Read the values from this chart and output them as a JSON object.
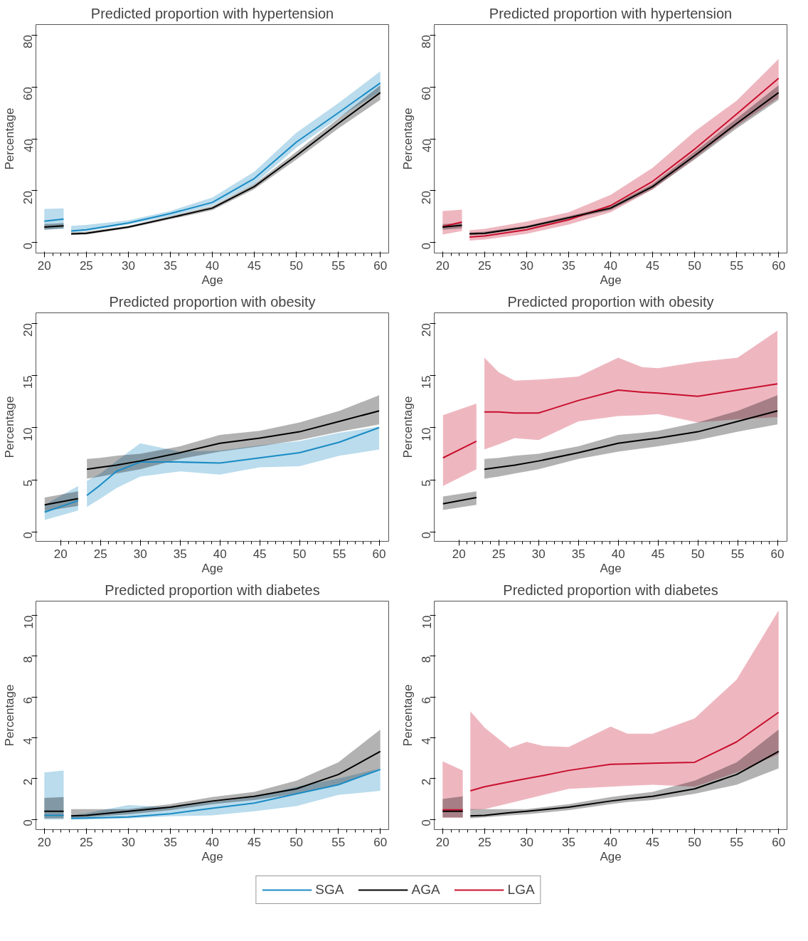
{
  "chart_data": [
    {
      "type": "line",
      "title": "Predicted proportion with hypertension",
      "xlabel": "Age",
      "ylabel": "Percentage",
      "grid": false,
      "xlim": [
        19,
        61
      ],
      "xticks": [
        20,
        25,
        30,
        35,
        40,
        45,
        50,
        55,
        60
      ],
      "ylim": [
        -4,
        84
      ],
      "yticks": [
        0,
        20,
        40,
        60,
        80
      ],
      "x": [
        20,
        22.3,
        22.8,
        23.2,
        25,
        30,
        35,
        40,
        45,
        50,
        55,
        60
      ],
      "series": [
        {
          "color": "#1a8bc4",
          "values": [
            8.3,
            9.1,
            null,
            4.5,
            5.0,
            7.6,
            11.2,
            15.5,
            24.7,
            38.7,
            50,
            61.5
          ],
          "lower": [
            5,
            5.3,
            null,
            3.9,
            4.4,
            7,
            10.2,
            14.3,
            22.6,
            36.6,
            48,
            58.3
          ],
          "upper": [
            13,
            13.2,
            null,
            6.5,
            6.8,
            8.6,
            12.2,
            17.4,
            27.3,
            42.3,
            53.7,
            66
          ]
        },
        {
          "color": "#000000",
          "values": [
            6.0,
            6.5,
            null,
            3.4,
            3.6,
            6.0,
            9.6,
            13.3,
            21.6,
            33.5,
            45.9,
            57.8
          ],
          "lower": [
            5.0,
            5.5,
            null,
            2.9,
            3.1,
            5.5,
            9,
            12.5,
            20.6,
            32,
            44,
            55
          ],
          "upper": [
            7.2,
            7.5,
            null,
            3.9,
            4.2,
            6.5,
            10.2,
            14.1,
            22.6,
            35,
            47.8,
            60.6
          ]
        }
      ]
    },
    {
      "type": "line",
      "title": "Predicted proportion with hypertension",
      "xlabel": "Age",
      "ylabel": "Percentage",
      "grid": false,
      "xlim": [
        19,
        61
      ],
      "xticks": [
        20,
        25,
        30,
        35,
        40,
        45,
        50,
        55,
        60
      ],
      "ylim": [
        -4,
        84
      ],
      "yticks": [
        0,
        20,
        40,
        60,
        80
      ],
      "x": [
        20,
        22.3,
        22.8,
        23.2,
        25,
        30,
        35,
        40,
        45,
        50,
        55,
        60
      ],
      "series": [
        {
          "color": "#c8102e",
          "values": [
            6.2,
            7.9,
            null,
            2.2,
            2.6,
            5.0,
            8.8,
            14.3,
            23.6,
            36,
            49.5,
            63.3
          ],
          "lower": [
            3.1,
            4.5,
            null,
            0.8,
            1.2,
            3.4,
            7.0,
            11.7,
            20.5,
            32.4,
            44.9,
            55.8
          ],
          "upper": [
            12.2,
            12.7,
            null,
            4.8,
            5.3,
            8.1,
            11.7,
            18.4,
            28.8,
            42.8,
            54.7,
            70.8
          ]
        },
        {
          "color": "#000000",
          "values": [
            6.0,
            6.7,
            null,
            3.4,
            3.6,
            6.0,
            9.6,
            13.3,
            21.6,
            33.5,
            45.9,
            57.8
          ],
          "lower": [
            5.0,
            5.5,
            null,
            2.9,
            3.1,
            5.5,
            9,
            12.5,
            20.6,
            32,
            44,
            55
          ],
          "upper": [
            7.2,
            7.5,
            null,
            3.9,
            4.2,
            6.5,
            10.2,
            14.1,
            22.6,
            35,
            47.8,
            60.6
          ]
        }
      ]
    },
    {
      "type": "line",
      "title": "Predicted proportion with obesity",
      "xlabel": "Age",
      "ylabel": "Percentage",
      "grid": false,
      "xlim": [
        16.9,
        61.2
      ],
      "xticks": [
        20,
        25,
        30,
        35,
        40,
        45,
        50,
        55,
        60
      ],
      "ylim": [
        -0.9,
        21
      ],
      "yticks": [
        0,
        5,
        10,
        15,
        20
      ],
      "x": [
        18,
        22.2,
        22.8,
        23.3,
        25,
        27,
        30,
        35,
        40,
        45,
        50,
        55,
        60
      ],
      "series": [
        {
          "color": "#1a8bc4",
          "values": [
            1.9,
            3.0,
            null,
            3.5,
            4.5,
            5.8,
            6.7,
            6.7,
            6.6,
            7.1,
            7.6,
            8.6,
            10.0
          ],
          "lower": [
            1.15,
            2.05,
            null,
            2.4,
            3.2,
            4.2,
            5.3,
            5.8,
            5.5,
            6.2,
            6.3,
            7.3,
            7.9
          ],
          "upper": [
            2.6,
            4.4,
            null,
            4.9,
            5.6,
            6.8,
            8.5,
            7.7,
            7.8,
            8.3,
            8.7,
            9.5,
            10.1
          ]
        },
        {
          "color": "#000000",
          "values": [
            2.6,
            3.2,
            null,
            6.0,
            6.2,
            6.4,
            6.8,
            7.6,
            8.5,
            9.0,
            9.6,
            10.6,
            11.6
          ],
          "lower": [
            2.0,
            2.5,
            null,
            5.1,
            5.3,
            5.6,
            6.0,
            7.0,
            7.7,
            8.2,
            8.8,
            9.6,
            10.3
          ],
          "upper": [
            3.3,
            3.9,
            null,
            7.0,
            7.1,
            7.3,
            7.5,
            8.2,
            9.3,
            9.7,
            10.5,
            11.6,
            13.1
          ]
        }
      ]
    },
    {
      "type": "line",
      "title": "Predicted proportion with obesity",
      "xlabel": "Age",
      "ylabel": "Percentage",
      "grid": false,
      "xlim": [
        16.9,
        61.2
      ],
      "xticks": [
        20,
        25,
        30,
        35,
        40,
        45,
        50,
        55,
        60
      ],
      "ylim": [
        -0.9,
        21
      ],
      "yticks": [
        0,
        5,
        10,
        15,
        20
      ],
      "x": [
        18,
        22.2,
        22.8,
        23.2,
        25,
        27,
        30,
        35,
        40,
        43,
        45,
        50,
        55,
        60
      ],
      "series": [
        {
          "color": "#c8102e",
          "values": [
            7.1,
            8.7,
            null,
            11.5,
            11.5,
            11.4,
            11.4,
            12.6,
            13.6,
            13.4,
            13.3,
            13.0,
            13.6,
            14.2
          ],
          "lower": [
            4.4,
            6.0,
            null,
            7.9,
            8.4,
            9.0,
            8.8,
            10.6,
            11.1,
            11.2,
            11.3,
            10.5,
            10.8,
            11.0
          ],
          "upper": [
            11.2,
            12.3,
            null,
            16.7,
            15.3,
            14.5,
            14.6,
            14.9,
            16.7,
            15.8,
            15.7,
            16.3,
            16.7,
            19.3
          ]
        },
        {
          "color": "#000000",
          "values": [
            2.7,
            3.3,
            null,
            6.0,
            6.2,
            6.4,
            6.8,
            7.6,
            8.5,
            8.8,
            9.0,
            9.6,
            10.6,
            11.6
          ],
          "lower": [
            2.1,
            2.6,
            null,
            5.1,
            5.3,
            5.6,
            6.0,
            7.0,
            7.7,
            8.0,
            8.2,
            8.8,
            9.6,
            10.3
          ],
          "upper": [
            3.4,
            3.9,
            null,
            7.0,
            7.1,
            7.3,
            7.5,
            8.2,
            9.3,
            9.5,
            9.7,
            10.5,
            11.6,
            13.1
          ]
        }
      ]
    },
    {
      "type": "line",
      "title": "Predicted proportion with diabetes",
      "xlabel": "Age",
      "ylabel": "Percentage",
      "legend": "bottom",
      "grid": false,
      "xlim": [
        19,
        61
      ],
      "xticks": [
        20,
        25,
        30,
        35,
        40,
        45,
        50,
        55,
        60
      ],
      "ylim": [
        -0.5,
        10.7
      ],
      "yticks": [
        0,
        2,
        4,
        6,
        8,
        10
      ],
      "x": [
        20,
        22.3,
        22.8,
        23.2,
        25,
        30,
        35,
        40,
        45,
        50,
        55,
        60
      ],
      "series": [
        {
          "name": "SGA",
          "color": "#1a8bc4",
          "values": [
            0.2,
            0.2,
            null,
            0.05,
            0.07,
            0.12,
            0.28,
            0.55,
            0.8,
            1.25,
            1.7,
            2.45
          ],
          "lower": [
            0,
            0,
            null,
            0,
            0,
            0.05,
            0.15,
            0.2,
            0.4,
            0.65,
            1.2,
            1.4
          ],
          "upper": [
            2.3,
            2.4,
            null,
            0.2,
            0.3,
            0.7,
            0.6,
            0.85,
            1.1,
            1.6,
            2.0,
            2.5
          ]
        },
        {
          "name": "AGA",
          "color": "#000000",
          "values": [
            0.4,
            0.4,
            null,
            0.17,
            0.2,
            0.4,
            0.6,
            0.9,
            1.13,
            1.5,
            2.2,
            3.33
          ],
          "lower": [
            0.05,
            0.05,
            null,
            0.05,
            0.1,
            0.25,
            0.45,
            0.75,
            0.95,
            1.25,
            1.7,
            2.5
          ],
          "upper": [
            1.05,
            1.1,
            null,
            0.5,
            0.5,
            0.5,
            0.75,
            1.1,
            1.35,
            1.9,
            2.8,
            4.4
          ]
        }
      ]
    },
    {
      "type": "line",
      "title": "Predicted proportion with diabetes",
      "xlabel": "Age",
      "ylabel": "Percentage",
      "legend": "bottom",
      "grid": false,
      "xlim": [
        19,
        61
      ],
      "xticks": [
        20,
        25,
        30,
        35,
        40,
        45,
        50,
        55,
        60
      ],
      "ylim": [
        -0.5,
        10.7
      ],
      "yticks": [
        0,
        2,
        4,
        6,
        8,
        10
      ],
      "x": [
        20,
        22.4,
        22.8,
        23.3,
        25,
        28,
        30,
        32,
        35,
        40,
        42,
        45,
        50,
        55,
        60
      ],
      "series": [
        {
          "name": "LGA",
          "color": "#c8102e",
          "values": [
            0.47,
            0.47,
            null,
            1.4,
            1.6,
            1.85,
            2.0,
            2.15,
            2.4,
            2.7,
            2.72,
            2.75,
            2.8,
            3.8,
            5.25
          ],
          "lower": [
            0.08,
            0.08,
            null,
            0.47,
            0.5,
            0.8,
            1.0,
            1.2,
            1.5,
            1.6,
            1.65,
            1.7,
            1.6,
            2.3,
            3.2
          ],
          "upper": [
            2.85,
            2.4,
            null,
            5.3,
            4.5,
            3.5,
            3.8,
            3.6,
            3.55,
            4.55,
            4.2,
            4.2,
            4.95,
            6.85,
            10.25
          ]
        },
        {
          "color": "#000000",
          "values": [
            0.4,
            0.4,
            null,
            0.17,
            0.2,
            0.33,
            0.4,
            0.48,
            0.6,
            0.9,
            1.0,
            1.13,
            1.5,
            2.2,
            3.33
          ],
          "lower": [
            0.1,
            0.1,
            null,
            0.05,
            0.1,
            0.2,
            0.25,
            0.33,
            0.45,
            0.75,
            0.85,
            0.95,
            1.25,
            1.7,
            2.5
          ],
          "upper": [
            1.0,
            1.13,
            null,
            0.5,
            0.5,
            0.5,
            0.5,
            0.6,
            0.75,
            1.1,
            1.2,
            1.35,
            1.9,
            2.8,
            4.4
          ]
        }
      ]
    }
  ]
}
